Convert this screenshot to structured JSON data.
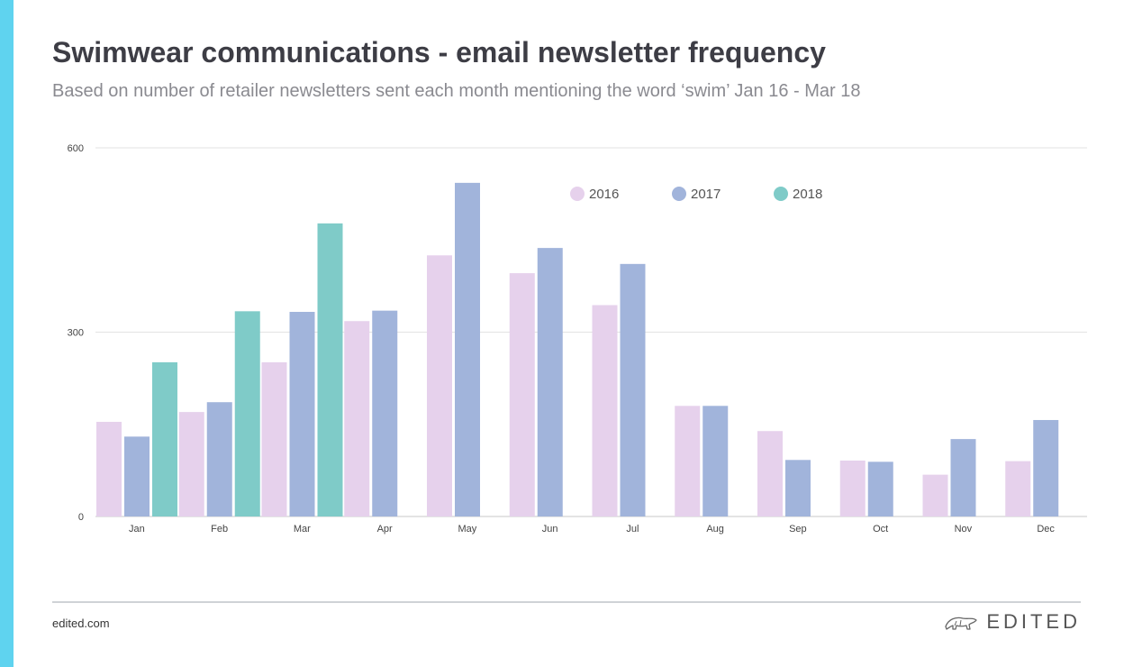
{
  "header": {
    "title": "Swimwear communications - email newsletter frequency",
    "subtitle": "Based on number of retailer newsletters sent each month mentioning the word ‘swim’ Jan 16 - Mar 18"
  },
  "footer": {
    "source": "edited.com",
    "brand": "EDITED"
  },
  "colors": {
    "accent_bar": "#5fd3ef",
    "series_2016": "#e6d1ec",
    "series_2017": "#a1b4db",
    "series_2018": "#7fcbc8"
  },
  "icons": [
    "polar-bear-logo-icon"
  ],
  "chart_data": {
    "type": "bar",
    "categories": [
      "Jan",
      "Feb",
      "Mar",
      "Apr",
      "May",
      "Jun",
      "Jul",
      "Aug",
      "Sep",
      "Oct",
      "Nov",
      "Dec"
    ],
    "series": [
      {
        "name": "2016",
        "color": "#e6d1ec",
        "values": [
          154,
          170,
          251,
          318,
          425,
          396,
          344,
          180,
          139,
          91,
          68,
          90
        ]
      },
      {
        "name": "2017",
        "color": "#a1b4db",
        "values": [
          130,
          186,
          333,
          335,
          543,
          437,
          411,
          180,
          92,
          89,
          126,
          157
        ]
      },
      {
        "name": "2018",
        "color": "#7fcbc8",
        "values": [
          251,
          334,
          477,
          null,
          null,
          null,
          null,
          null,
          null,
          null,
          null,
          null
        ]
      }
    ],
    "yticks": [
      0,
      300,
      600
    ],
    "ylim": [
      0,
      600
    ],
    "grid": true,
    "legend_position": "top-center",
    "xlabel": "",
    "ylabel": ""
  }
}
